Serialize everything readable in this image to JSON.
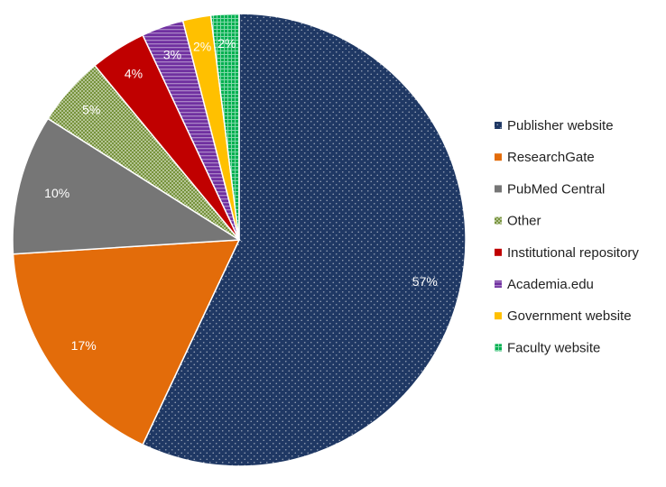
{
  "chart_data": {
    "type": "pie",
    "title": "",
    "start_angle_deg": 0,
    "direction": "clockwise",
    "legend_position": "right",
    "slices": [
      {
        "label": "Publisher website",
        "value": 57,
        "display": "57%",
        "color": "#1f3864",
        "pattern": "dots",
        "label_color": "#ffffff"
      },
      {
        "label": "ResearchGate",
        "value": 17,
        "display": "17%",
        "color": "#e36c0a",
        "pattern": "solid",
        "label_color": "#ffffff"
      },
      {
        "label": "PubMed Central",
        "value": 10,
        "display": "10%",
        "color": "#767676",
        "pattern": "solid",
        "label_color": "#ffffff"
      },
      {
        "label": "Other",
        "value": 5,
        "display": "5%",
        "color": "#77933c",
        "pattern": "checker",
        "label_color": "#ffffff"
      },
      {
        "label": "Institutional repository",
        "value": 4,
        "display": "4%",
        "color": "#c00000",
        "pattern": "solid",
        "label_color": "#ffffff"
      },
      {
        "label": "Academia.edu",
        "value": 3,
        "display": "3%",
        "color": "#7030a0",
        "pattern": "hstripes",
        "label_color": "#ffffff"
      },
      {
        "label": "Government website",
        "value": 2,
        "display": "2%",
        "color": "#ffc000",
        "pattern": "solid",
        "label_color": "#ffffff"
      },
      {
        "label": "Faculty website",
        "value": 2,
        "display": "2%",
        "color": "#00b050",
        "pattern": "grid",
        "label_color": "#ffffff"
      }
    ]
  }
}
